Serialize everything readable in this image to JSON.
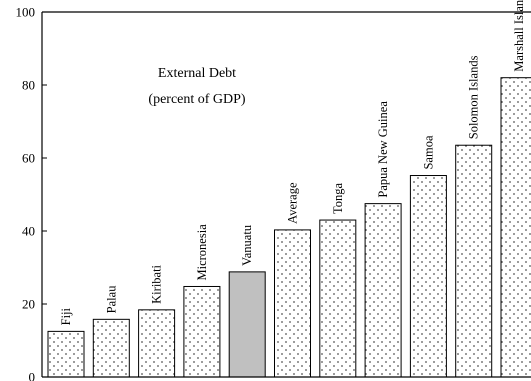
{
  "chart_data": {
    "type": "bar",
    "title": "External Debt",
    "subtitle": "(percent of GDP)",
    "xlabel": "",
    "ylabel": "",
    "ylim": [
      0,
      100
    ],
    "yticks": [
      "0",
      "20",
      "40",
      "60",
      "80",
      "100"
    ],
    "grid": false,
    "categories": [
      "Fiji",
      "Palau",
      "Kiribati",
      "Micronesia",
      "Vanuatu",
      "Average",
      "Tonga",
      "Papua New Guinea",
      "Samoa",
      "Solomon Islands",
      "Marshall Islands"
    ],
    "values": [
      12.5,
      15.8,
      18.4,
      24.8,
      28.8,
      40.3,
      43.0,
      47.5,
      55.2,
      63.5,
      82.0
    ],
    "highlight_category": "Vanuatu",
    "colors": {
      "bar_fill": "#ffffff",
      "bar_dots": "#555555",
      "highlight_fill": "#c0c0c0",
      "axis": "#000000"
    }
  }
}
